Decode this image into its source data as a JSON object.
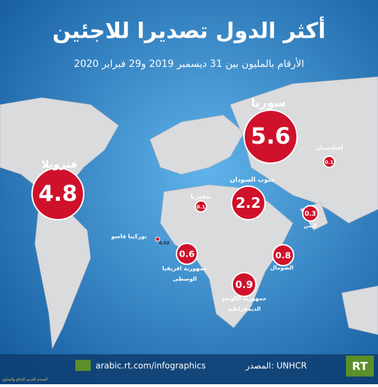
{
  "title": "أكثر الدول تصديرا للاجئين",
  "subtitle": "الأرقام بالمليون بين 31 ديسمبر 2019 و29 فبراير 2020",
  "countries": [
    {
      "name": "سوريا",
      "value": 5.6
    },
    {
      "name": "فنزويلا",
      "value": 4.8
    },
    {
      "name": "جنوب السودان",
      "value": 2.2
    },
    {
      "name": "أفغانستان",
      "value": 0.1
    },
    {
      "name": "نيجيريا",
      "value": 0.1
    },
    {
      "name": "اليمن",
      "value": 0.3
    },
    {
      "name": "الصومال",
      "value": 0.8
    },
    {
      "name": "بوركينا فاسو",
      "value": 0.02
    },
    {
      "name_lines": [
        "جمهورية افريقيا",
        "الوسطى"
      ],
      "value": 0.6
    },
    {
      "name_lines": [
        "جمهورية الكونغو",
        "الديمقراطية"
      ],
      "value": 0.9
    }
  ],
  "footer": {
    "url": "arabic.rt.com/infographics",
    "source": "المصدر: UNHCR",
    "logo": "RT",
    "watermark": "المنتدى العربي للدفاع والتسليح"
  }
}
